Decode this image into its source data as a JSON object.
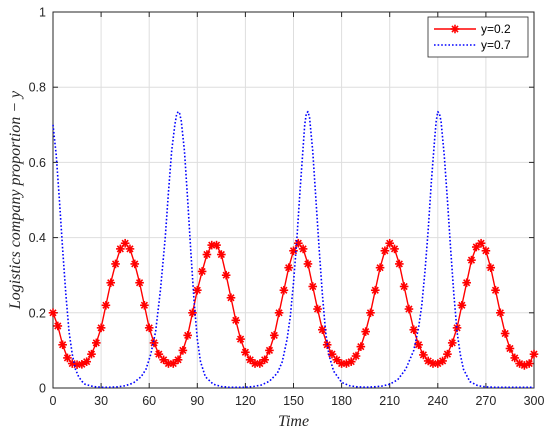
{
  "chart_data": {
    "type": "line",
    "xlabel": "Time",
    "ylabel": "Logistics company proportion − y",
    "xlim": [
      0,
      300
    ],
    "ylim": [
      0,
      1
    ],
    "xticks": [
      "0",
      "30",
      "60",
      "90",
      "120",
      "150",
      "180",
      "210",
      "240",
      "270",
      "300"
    ],
    "yticks": [
      "0",
      "0.2",
      "0.4",
      "0.6",
      "0.8",
      "1"
    ],
    "grid": true,
    "legend_position": "top-right",
    "series": [
      {
        "name": "y=0.2",
        "color": "#ff0000",
        "line_style": "solid",
        "marker": "asterisk",
        "x": [
          0,
          3,
          6,
          9,
          12,
          15,
          18,
          21,
          24,
          27,
          30,
          33,
          36,
          39,
          42,
          45,
          48,
          51,
          54,
          57,
          60,
          63,
          66,
          69,
          72,
          75,
          78,
          81,
          84,
          87,
          90,
          93,
          96,
          99,
          102,
          105,
          108,
          111,
          114,
          117,
          120,
          123,
          126,
          129,
          132,
          135,
          138,
          141,
          144,
          147,
          150,
          153,
          156,
          159,
          162,
          165,
          168,
          171,
          174,
          177,
          180,
          183,
          186,
          189,
          192,
          195,
          198,
          201,
          204,
          207,
          210,
          213,
          216,
          219,
          222,
          225,
          228,
          231,
          234,
          237,
          240,
          243,
          246,
          249,
          252,
          255,
          258,
          261,
          264,
          267,
          270,
          273,
          276,
          279,
          282,
          285,
          288,
          291,
          294,
          297,
          300
        ],
        "y": [
          0.2,
          0.165,
          0.115,
          0.08,
          0.065,
          0.062,
          0.063,
          0.07,
          0.09,
          0.12,
          0.16,
          0.22,
          0.28,
          0.33,
          0.37,
          0.385,
          0.37,
          0.33,
          0.28,
          0.22,
          0.16,
          0.12,
          0.09,
          0.075,
          0.065,
          0.065,
          0.075,
          0.1,
          0.14,
          0.2,
          0.26,
          0.31,
          0.355,
          0.38,
          0.38,
          0.355,
          0.3,
          0.24,
          0.18,
          0.13,
          0.095,
          0.075,
          0.065,
          0.065,
          0.075,
          0.1,
          0.14,
          0.2,
          0.26,
          0.32,
          0.365,
          0.385,
          0.37,
          0.33,
          0.27,
          0.21,
          0.155,
          0.115,
          0.09,
          0.075,
          0.065,
          0.065,
          0.07,
          0.085,
          0.11,
          0.15,
          0.2,
          0.26,
          0.32,
          0.365,
          0.385,
          0.37,
          0.33,
          0.27,
          0.21,
          0.155,
          0.115,
          0.088,
          0.072,
          0.065,
          0.065,
          0.072,
          0.09,
          0.12,
          0.16,
          0.22,
          0.28,
          0.34,
          0.375,
          0.385,
          0.365,
          0.32,
          0.26,
          0.2,
          0.145,
          0.105,
          0.08,
          0.065,
          0.06,
          0.065,
          0.09
        ]
      },
      {
        "name": "y=0.7",
        "color": "#0000ff",
        "line_style": "dotted",
        "x": [
          0,
          2,
          4,
          6,
          8,
          10,
          12,
          14,
          16,
          18,
          20,
          25,
          30,
          35,
          40,
          45,
          50,
          55,
          58,
          61,
          64,
          67,
          70,
          72,
          74,
          76,
          77,
          78,
          79,
          80,
          82,
          84,
          86,
          88,
          90,
          92,
          95,
          100,
          105,
          110,
          115,
          120,
          125,
          130,
          135,
          140,
          143,
          146,
          148,
          150,
          152,
          154,
          156,
          157,
          158,
          159,
          160,
          162,
          164,
          166,
          168,
          170,
          172,
          175,
          180,
          185,
          190,
          195,
          200,
          205,
          210,
          215,
          220,
          225,
          228,
          230,
          232,
          234,
          236,
          238,
          239,
          240,
          241,
          242,
          244,
          246,
          248,
          250,
          252,
          254,
          256,
          260,
          265,
          270,
          275,
          280,
          285,
          290,
          295,
          300
        ],
        "y": [
          0.7,
          0.62,
          0.5,
          0.37,
          0.25,
          0.15,
          0.09,
          0.05,
          0.03,
          0.018,
          0.01,
          0.004,
          0.002,
          0.002,
          0.003,
          0.006,
          0.013,
          0.03,
          0.05,
          0.09,
          0.15,
          0.26,
          0.4,
          0.52,
          0.63,
          0.7,
          0.725,
          0.735,
          0.73,
          0.71,
          0.63,
          0.5,
          0.36,
          0.23,
          0.13,
          0.07,
          0.03,
          0.01,
          0.004,
          0.002,
          0.002,
          0.002,
          0.004,
          0.008,
          0.018,
          0.04,
          0.07,
          0.13,
          0.19,
          0.28,
          0.39,
          0.52,
          0.64,
          0.7,
          0.73,
          0.735,
          0.72,
          0.63,
          0.5,
          0.37,
          0.25,
          0.15,
          0.09,
          0.045,
          0.015,
          0.006,
          0.003,
          0.002,
          0.003,
          0.005,
          0.01,
          0.022,
          0.05,
          0.1,
          0.16,
          0.22,
          0.31,
          0.42,
          0.55,
          0.66,
          0.71,
          0.735,
          0.73,
          0.71,
          0.62,
          0.5,
          0.37,
          0.25,
          0.15,
          0.09,
          0.05,
          0.017,
          0.006,
          0.003,
          0.002,
          0.002,
          0.002,
          0.002,
          0.002,
          0.002
        ]
      }
    ]
  }
}
